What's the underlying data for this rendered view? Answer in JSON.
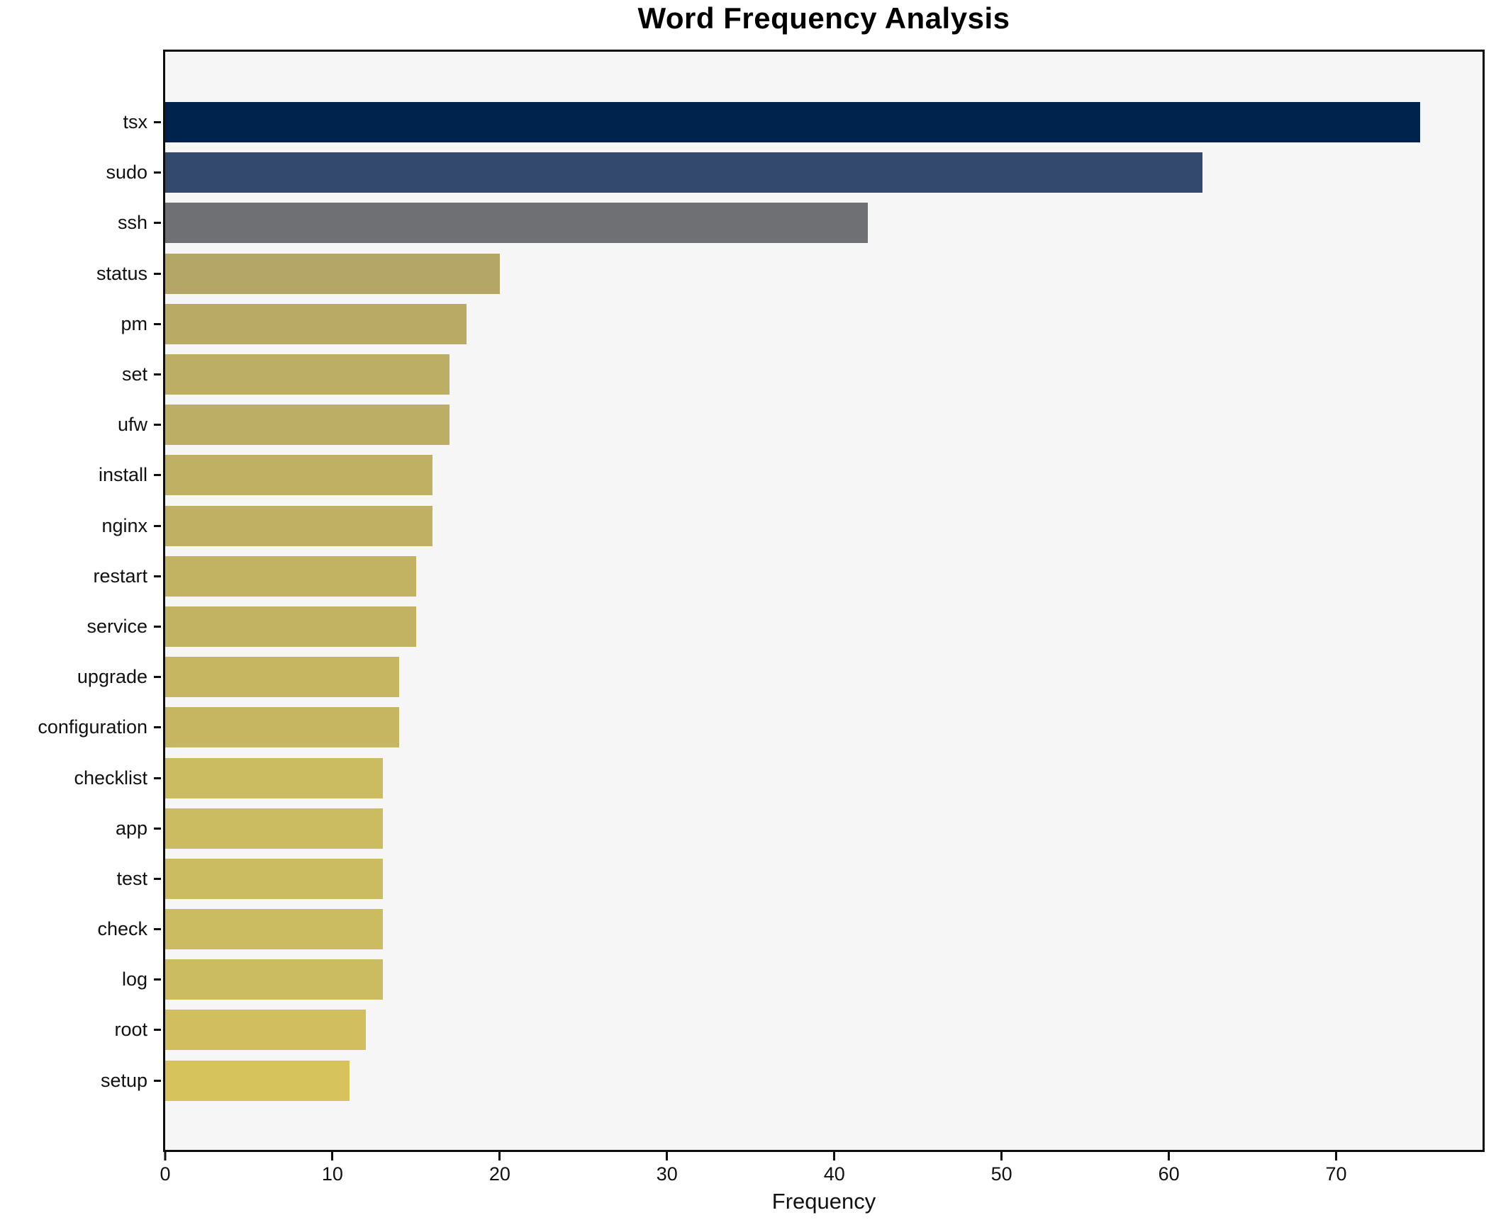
{
  "chart_data": {
    "type": "bar",
    "orientation": "horizontal",
    "title": "Word Frequency Analysis",
    "xlabel": "Frequency",
    "ylabel": "",
    "categories": [
      "tsx",
      "sudo",
      "ssh",
      "status",
      "pm",
      "set",
      "ufw",
      "install",
      "nginx",
      "restart",
      "service",
      "upgrade",
      "configuration",
      "checklist",
      "app",
      "test",
      "check",
      "log",
      "root",
      "setup"
    ],
    "values": [
      75,
      62,
      42,
      20,
      18,
      17,
      17,
      16,
      16,
      15,
      15,
      14,
      14,
      13,
      13,
      13,
      13,
      13,
      12,
      11
    ],
    "bar_colors": [
      "#00234e",
      "#334a6e",
      "#6f7073",
      "#b3a666",
      "#b9ab65",
      "#bcae65",
      "#bcae65",
      "#bfb064",
      "#bfb064",
      "#c2b363",
      "#c2b363",
      "#c6b662",
      "#c6b662",
      "#cbbc61",
      "#cbbc61",
      "#cbbc61",
      "#cbbc61",
      "#cbbc61",
      "#d1bf5f",
      "#d6c35c"
    ],
    "xlim": [
      0,
      78.75
    ],
    "x_ticks": [
      0,
      10,
      20,
      30,
      40,
      50,
      60,
      70
    ],
    "x_tick_labels": [
      "0",
      "10",
      "20",
      "30",
      "40",
      "50",
      "60",
      "70"
    ],
    "grid": false,
    "legend_position": "none",
    "plot_background": "#f6f6f6",
    "figure_background": "#ffffff",
    "spine_color": "#0e0e0e"
  }
}
